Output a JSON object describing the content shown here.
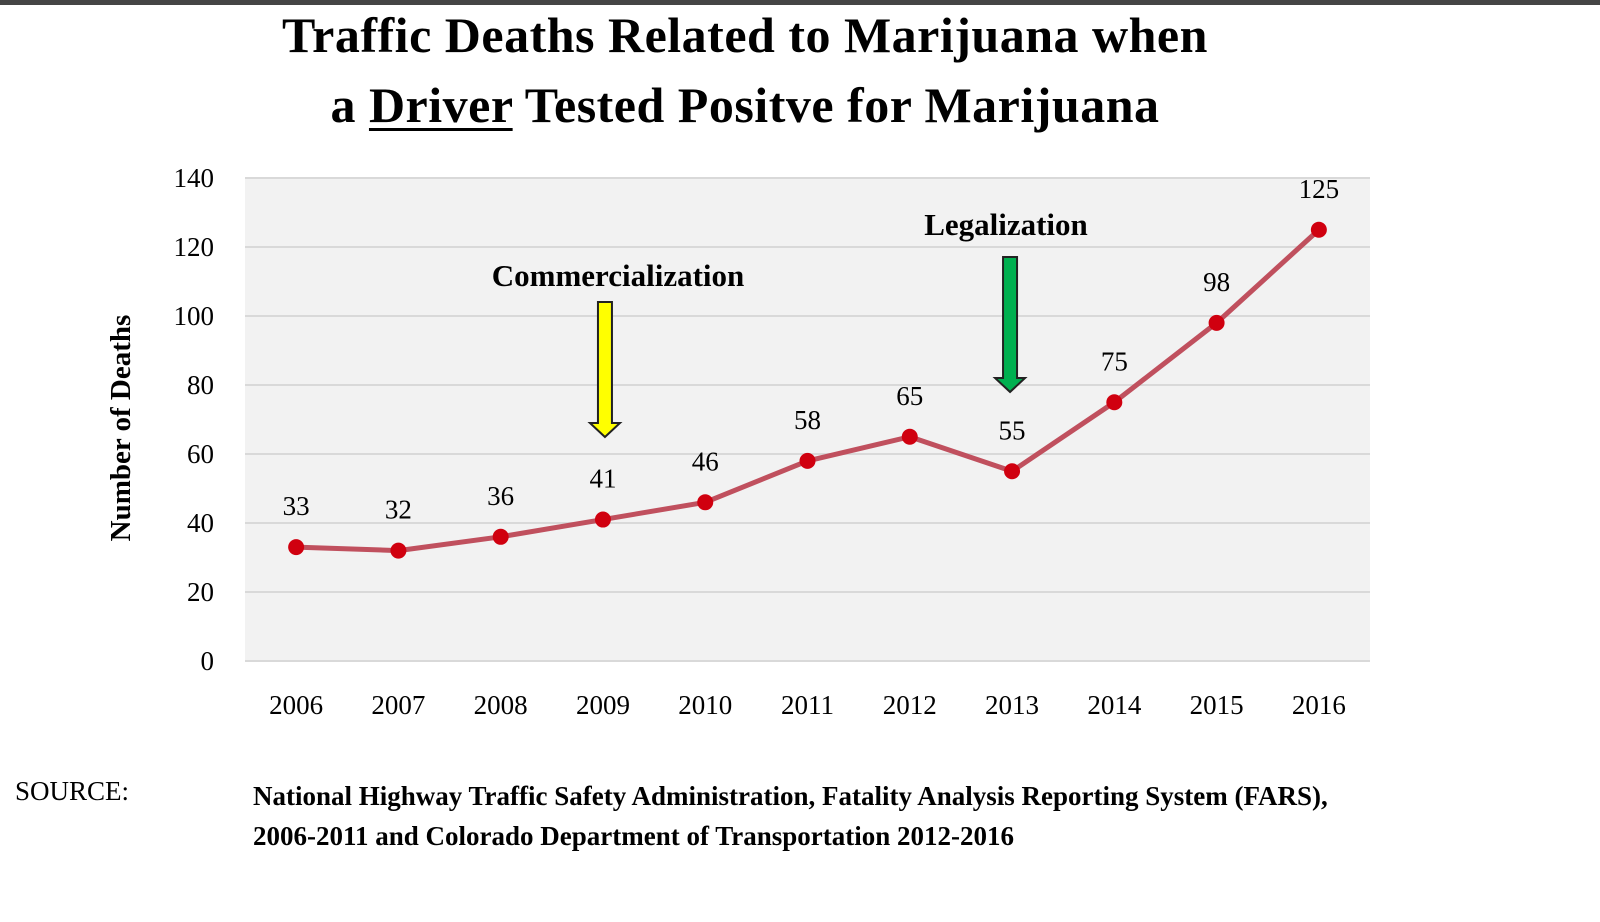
{
  "title": {
    "line1": "Traffic Deaths Related to Marijuana when",
    "line2_prefix": "a",
    "line2_underlined": "Driver",
    "line2_suffix": "Tested Positve for Marijuana"
  },
  "chart_data": {
    "type": "line",
    "title": "Traffic Deaths Related to Marijuana when a Driver Tested Positve for Marijuana",
    "xlabel": "",
    "ylabel": "Number of Deaths",
    "categories": [
      "2006",
      "2007",
      "2008",
      "2009",
      "2010",
      "2011",
      "2012",
      "2013",
      "2014",
      "2015",
      "2016"
    ],
    "values": [
      33,
      32,
      36,
      41,
      46,
      58,
      65,
      55,
      75,
      98,
      125
    ],
    "ylim": [
      0,
      140
    ],
    "yticks": [
      0,
      20,
      40,
      60,
      80,
      100,
      120,
      140
    ],
    "grid": true,
    "data_labels": true,
    "line_color": "#c0505e",
    "marker_color": "#d0000f",
    "plot_background": "#f2f2f2",
    "annotations": [
      {
        "text": "Commercialization",
        "category": "2009",
        "arrow_color": "#ffff00"
      },
      {
        "text": "Legalization",
        "category": "2013",
        "arrow_color": "#00b050"
      }
    ]
  },
  "source": {
    "label": "SOURCE:",
    "line1": "National Highway Traffic Safety Administration, Fatality Analysis Reporting System (FARS),",
    "line2": "2006-2011 and Colorado Department of Transportation 2012-2016"
  }
}
